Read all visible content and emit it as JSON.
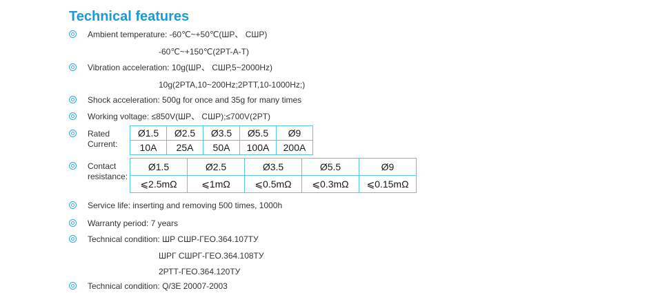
{
  "title": "Technical features",
  "colors": {
    "title_blue": "#1b9ad6",
    "bullet_cyan": "#29abe2",
    "table_border": "#54c6f0",
    "body_text": "#333333"
  },
  "features": {
    "ambient_temperature": {
      "text": "Ambient temperature: -60℃~+50℃(ШР、 СШР)",
      "cont": "-60℃~+150℃(2PT-A-T)"
    },
    "vibration_acceleration": {
      "text": "Vibration acceleration: 10g(ШР、 СШР,5~2000Hz)",
      "cont": "10g(2PTA,10~200Hz;2PTT,10-1000Hz;)"
    },
    "shock_acceleration": {
      "text": "Shock acceleration: 500g for once and 35g for many times"
    },
    "working_voltage": {
      "text": "Working voltage: ≤850V(ШР、 СШР);≤700V(2PT)"
    },
    "service_life": {
      "text": "Service life: inserting and removing 500 times, 1000h"
    },
    "warranty_period": {
      "text": "Warranty period: 7 years"
    },
    "technical_condition_gost": {
      "text": "Technical condition: ШР СШР-ГЕО.364.107ТУ",
      "cont1": "ШРГ СШРГ-ГЕО.364.108ТУ",
      "cont2": "2РТТ-ГЕО.364.120ТУ"
    },
    "technical_condition_q3e": {
      "text": "Technical condition: Q/3E 20007-2003"
    }
  },
  "rated_current": {
    "label_line1": "Rated",
    "label_line2": "Current:",
    "header": [
      "Ø1.5",
      "Ø2.5",
      "Ø3.5",
      "Ø5.5",
      "Ø9"
    ],
    "values": [
      "10A",
      "25A",
      "50A",
      "100A",
      "200A"
    ]
  },
  "contact_resistance": {
    "label_line1": "Contact",
    "label_line2": "resistance:",
    "header": [
      "Ø1.5",
      "Ø2.5",
      "Ø3.5",
      "Ø5.5",
      "Ø9"
    ],
    "values": [
      "⩽2.5mΩ",
      "⩽1mΩ",
      "⩽0.5mΩ",
      "⩽0.3mΩ",
      "⩽0.15mΩ"
    ]
  }
}
